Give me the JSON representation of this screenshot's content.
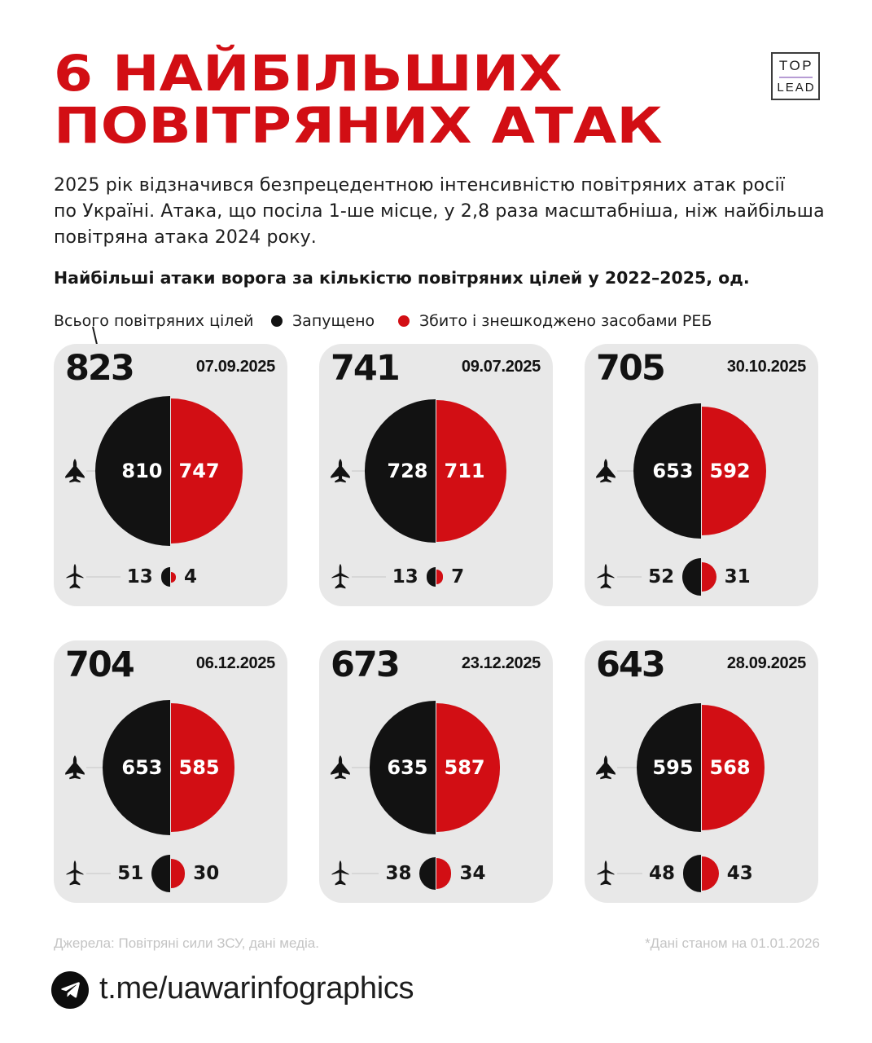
{
  "colors": {
    "red": "#d20e14",
    "ink": "#121212",
    "card_bg": "#e8e8e8",
    "connector": "#d7d7d7",
    "muted": "#c4c4c4"
  },
  "logo": {
    "top": "TOP",
    "lead": "LEAD"
  },
  "title": "6 НАЙБІЛЬШИХ\nПОВІТРЯНИХ АТАК",
  "intro": "2025 рік відзначився безпрецедентною інтенсивністю повітряних атак росії\nпо Україні. Атака, що посіла 1-ше місце, у 2,8 раза масштабніша, ніж найбільша\nповітряна атака 2024 року.",
  "subtitle": "Найбільші атаки ворога за кількістю повітряних цілей у 2022–2025, од.",
  "legend": {
    "total_label": "Всього повітряних цілей",
    "launched_label": "Запущено",
    "downed_label": "Збито і знешкоджено засобами РЕБ"
  },
  "chart_data": {
    "type": "proportional-half-circle small multiples",
    "units": "од.",
    "radius_rule": "radius_px = 3.25 * sqrt(value)",
    "legend": [
      "Запущено (чорний)",
      "Збито і знешкоджено засобами РЕБ (червоний)"
    ],
    "cards": [
      {
        "total": 823,
        "date": "07.09.2025",
        "drones": {
          "launched": 810,
          "downed": 747
        },
        "missiles": {
          "launched": 13,
          "downed": 4
        }
      },
      {
        "total": 741,
        "date": "09.07.2025",
        "drones": {
          "launched": 728,
          "downed": 711
        },
        "missiles": {
          "launched": 13,
          "downed": 7
        }
      },
      {
        "total": 705,
        "date": "30.10.2025",
        "drones": {
          "launched": 653,
          "downed": 592
        },
        "missiles": {
          "launched": 52,
          "downed": 31
        }
      },
      {
        "total": 704,
        "date": "06.12.2025",
        "drones": {
          "launched": 653,
          "downed": 585
        },
        "missiles": {
          "launched": 51,
          "downed": 30
        }
      },
      {
        "total": 673,
        "date": "23.12.2025",
        "drones": {
          "launched": 635,
          "downed": 587
        },
        "missiles": {
          "launched": 38,
          "downed": 34
        }
      },
      {
        "total": 643,
        "date": "28.09.2025",
        "drones": {
          "launched": 595,
          "downed": 568
        },
        "missiles": {
          "launched": 48,
          "downed": 43
        }
      }
    ]
  },
  "footer": {
    "sources": "Джерела: Повітряні сили ЗСУ, дані медіа.",
    "note": "*Дані станом на 01.01.2026",
    "handle": "t.me/uawarinfographics"
  }
}
